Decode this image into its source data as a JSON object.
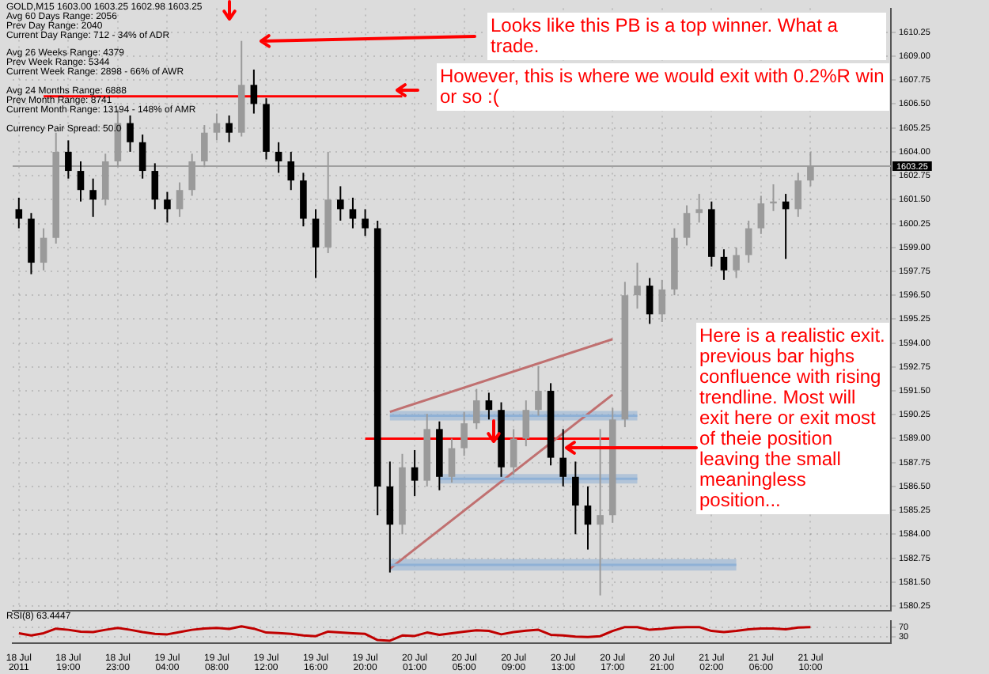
{
  "chart_data": [
    {
      "type": "candlestick",
      "grid": true,
      "categories": [
        "18 Jul 2011",
        null,
        null,
        null,
        "18 Jul 19:00",
        null,
        null,
        null,
        "18 Jul 23:00",
        null,
        null,
        null,
        "19 Jul 04:00",
        null,
        null,
        null,
        "19 Jul 08:00",
        null,
        null,
        null,
        "19 Jul 12:00",
        null,
        null,
        null,
        "19 Jul 16:00",
        null,
        null,
        null,
        "19 Jul 20:00",
        null,
        null,
        null,
        "20 Jul 01:00",
        null,
        null,
        null,
        "20 Jul 05:00",
        null,
        null,
        null,
        "20 Jul 09:00",
        null,
        null,
        null,
        "20 Jul 13:00",
        null,
        null,
        null,
        "20 Jul 17:00",
        null,
        null,
        null,
        "20 Jul 21:00",
        null,
        null,
        null,
        "21 Jul 02:00",
        null,
        null,
        null,
        "21 Jul 06:00",
        null,
        null,
        null,
        "21 Jul 10:00",
        null,
        null,
        null,
        null,
        null,
        null
      ],
      "ohlc": [
        [
          1601.0,
          1601.6,
          1600.0,
          1600.5
        ],
        [
          1600.5,
          1600.8,
          1597.6,
          1598.2
        ],
        [
          1598.2,
          1600.0,
          1597.8,
          1599.5
        ],
        [
          1599.5,
          1605.0,
          1599.2,
          1604.0
        ],
        [
          1604.0,
          1604.6,
          1602.6,
          1603.0
        ],
        [
          1603.0,
          1603.5,
          1601.4,
          1602.0
        ],
        [
          1602.0,
          1602.6,
          1600.6,
          1601.5
        ],
        [
          1601.5,
          1603.9,
          1601.2,
          1603.5
        ],
        [
          1603.5,
          1606.2,
          1603.2,
          1605.5
        ],
        [
          1605.5,
          1605.9,
          1604.0,
          1604.5
        ],
        [
          1604.5,
          1604.9,
          1602.6,
          1603.0
        ],
        [
          1603.0,
          1603.4,
          1601.0,
          1601.5
        ],
        [
          1601.5,
          1601.9,
          1600.3,
          1601.0
        ],
        [
          1601.0,
          1602.4,
          1600.6,
          1602.0
        ],
        [
          1602.0,
          1603.9,
          1601.7,
          1603.5
        ],
        [
          1603.5,
          1605.4,
          1603.2,
          1605.0
        ],
        [
          1605.0,
          1606.0,
          1604.6,
          1605.5
        ],
        [
          1605.5,
          1605.9,
          1604.5,
          1605.0
        ],
        [
          1605.0,
          1609.8,
          1604.8,
          1607.5
        ],
        [
          1607.5,
          1608.3,
          1606.0,
          1606.5
        ],
        [
          1606.5,
          1606.8,
          1603.6,
          1604.0
        ],
        [
          1604.0,
          1604.5,
          1602.9,
          1603.5
        ],
        [
          1603.5,
          1604.0,
          1602.0,
          1602.5
        ],
        [
          1602.5,
          1602.9,
          1600.1,
          1600.5
        ],
        [
          1600.5,
          1601.0,
          1597.4,
          1599.0
        ],
        [
          1599.0,
          1604.0,
          1598.7,
          1601.5
        ],
        [
          1601.5,
          1602.2,
          1600.4,
          1601.0
        ],
        [
          1601.0,
          1601.6,
          1600.0,
          1600.5
        ],
        [
          1600.5,
          1601.0,
          1599.6,
          1600.0
        ],
        [
          1600.0,
          1600.4,
          1585.0,
          1586.5
        ],
        [
          1586.5,
          1587.8,
          1582.0,
          1584.5
        ],
        [
          1584.5,
          1588.2,
          1584.0,
          1587.5
        ],
        [
          1587.5,
          1588.4,
          1586.0,
          1586.8
        ],
        [
          1586.8,
          1590.3,
          1586.5,
          1589.5
        ],
        [
          1589.5,
          1589.9,
          1586.3,
          1587.0
        ],
        [
          1587.0,
          1589.0,
          1586.7,
          1588.5
        ],
        [
          1588.5,
          1590.4,
          1588.1,
          1589.8
        ],
        [
          1589.8,
          1591.6,
          1589.5,
          1591.0
        ],
        [
          1591.0,
          1591.4,
          1590.0,
          1590.5
        ],
        [
          1590.5,
          1590.9,
          1587.0,
          1587.5
        ],
        [
          1587.5,
          1589.5,
          1587.1,
          1589.0
        ],
        [
          1589.0,
          1591.0,
          1588.6,
          1590.5
        ],
        [
          1590.5,
          1592.8,
          1590.2,
          1591.5
        ],
        [
          1591.5,
          1591.9,
          1587.6,
          1588.0
        ],
        [
          1588.0,
          1589.5,
          1586.5,
          1587.0
        ],
        [
          1587.0,
          1587.8,
          1584.0,
          1585.5
        ],
        [
          1585.5,
          1586.5,
          1583.2,
          1584.5
        ],
        [
          1584.5,
          1589.5,
          1580.8,
          1585.0
        ],
        [
          1585.0,
          1590.6,
          1584.6,
          1590.0
        ],
        [
          1590.0,
          1597.2,
          1589.6,
          1596.5
        ],
        [
          1596.5,
          1598.2,
          1595.8,
          1597.0
        ],
        [
          1597.0,
          1597.4,
          1595.0,
          1595.5
        ],
        [
          1595.5,
          1597.3,
          1595.1,
          1596.8
        ],
        [
          1596.8,
          1600.0,
          1596.5,
          1599.5
        ],
        [
          1599.5,
          1601.2,
          1599.1,
          1600.8
        ],
        [
          1600.8,
          1601.8,
          1600.3,
          1601.0
        ],
        [
          1601.0,
          1601.4,
          1598.0,
          1598.5
        ],
        [
          1598.5,
          1598.9,
          1597.3,
          1597.8
        ],
        [
          1597.8,
          1599.0,
          1597.4,
          1598.6
        ],
        [
          1598.6,
          1600.4,
          1598.2,
          1600.0
        ],
        [
          1600.0,
          1601.7,
          1599.7,
          1601.3
        ],
        [
          1601.3,
          1602.3,
          1600.9,
          1601.4
        ],
        [
          1601.4,
          1601.8,
          1598.4,
          1601.0
        ],
        [
          1601.0,
          1602.9,
          1600.6,
          1602.5
        ],
        [
          1602.5,
          1604.0,
          1602.2,
          1603.25
        ],
        null,
        null,
        null,
        null,
        null,
        null
      ],
      "series": [
        {
          "type": "line",
          "color": "#8fb1d6",
          "values": [
            null,
            null,
            null,
            null,
            null,
            null,
            null,
            null,
            null,
            null,
            null,
            null,
            null,
            null,
            null,
            null,
            null,
            null,
            null,
            null,
            null,
            null,
            null,
            null,
            null,
            null,
            null,
            null,
            null,
            null,
            1590.2,
            null,
            null,
            null,
            null,
            null,
            null,
            null,
            null,
            null,
            null,
            null,
            null,
            null,
            null,
            null,
            null,
            null,
            null,
            null,
            1590.2,
            null,
            null,
            null,
            null,
            null,
            null,
            null,
            null,
            null,
            null,
            null,
            null,
            null,
            null,
            null,
            null,
            null,
            null,
            null,
            null
          ],
          "lower": [
            null,
            null,
            null,
            null,
            null,
            null,
            null,
            null,
            null,
            null,
            null,
            null,
            null,
            null,
            null,
            null,
            null,
            null,
            null,
            null,
            null,
            null,
            null,
            null,
            null,
            null,
            null,
            null,
            null,
            null,
            1589.95,
            null,
            null,
            null,
            null,
            null,
            null,
            null,
            null,
            null,
            null,
            null,
            null,
            null,
            null,
            null,
            null,
            null,
            null,
            null,
            1589.95,
            null,
            null,
            null,
            null,
            null,
            null,
            null,
            null,
            null,
            null,
            null,
            null,
            null,
            null,
            null,
            null,
            null,
            null,
            null,
            null
          ],
          "upper": [
            null,
            null,
            null,
            null,
            null,
            null,
            null,
            null,
            null,
            null,
            null,
            null,
            null,
            null,
            null,
            null,
            null,
            null,
            null,
            null,
            null,
            null,
            null,
            null,
            null,
            null,
            null,
            null,
            null,
            null,
            1590.45,
            null,
            null,
            null,
            null,
            null,
            null,
            null,
            null,
            null,
            null,
            null,
            null,
            null,
            null,
            null,
            null,
            null,
            null,
            null,
            1590.45,
            null,
            null,
            null,
            null,
            null,
            null,
            null,
            null,
            null,
            null,
            null,
            null,
            null,
            null,
            null,
            null,
            null,
            null,
            null,
            null
          ]
        },
        {
          "type": "line",
          "color": "#8fb1d6",
          "values": [
            null,
            null,
            null,
            null,
            null,
            null,
            null,
            null,
            null,
            null,
            null,
            null,
            null,
            null,
            null,
            null,
            null,
            null,
            null,
            null,
            null,
            null,
            null,
            null,
            null,
            null,
            null,
            null,
            null,
            null,
            null,
            null,
            null,
            null,
            1586.9,
            null,
            null,
            null,
            null,
            null,
            null,
            null,
            null,
            null,
            null,
            null,
            null,
            null,
            null,
            null,
            1586.9,
            null,
            null,
            null,
            null,
            null,
            null,
            null,
            null,
            null,
            null,
            null,
            null,
            null,
            null,
            null,
            null,
            null,
            null,
            null,
            null
          ],
          "lower": [
            null,
            null,
            null,
            null,
            null,
            null,
            null,
            null,
            null,
            null,
            null,
            null,
            null,
            null,
            null,
            null,
            null,
            null,
            null,
            null,
            null,
            null,
            null,
            null,
            null,
            null,
            null,
            null,
            null,
            null,
            null,
            null,
            null,
            null,
            1586.65,
            null,
            null,
            null,
            null,
            null,
            null,
            null,
            null,
            null,
            null,
            null,
            null,
            null,
            null,
            null,
            1586.65,
            null,
            null,
            null,
            null,
            null,
            null,
            null,
            null,
            null,
            null,
            null,
            null,
            null,
            null,
            null,
            null,
            null,
            null,
            null,
            null
          ],
          "upper": [
            null,
            null,
            null,
            null,
            null,
            null,
            null,
            null,
            null,
            null,
            null,
            null,
            null,
            null,
            null,
            null,
            null,
            null,
            null,
            null,
            null,
            null,
            null,
            null,
            null,
            null,
            null,
            null,
            null,
            null,
            null,
            null,
            null,
            null,
            1587.15,
            null,
            null,
            null,
            null,
            null,
            null,
            null,
            null,
            null,
            null,
            null,
            null,
            null,
            null,
            null,
            1587.15,
            null,
            null,
            null,
            null,
            null,
            null,
            null,
            null,
            null,
            null,
            null,
            null,
            null,
            null,
            null,
            null,
            null,
            null,
            null,
            null
          ]
        },
        {
          "type": "line",
          "color": "#8fb1d6",
          "values": [
            null,
            null,
            null,
            null,
            null,
            null,
            null,
            null,
            null,
            null,
            null,
            null,
            null,
            null,
            null,
            null,
            null,
            null,
            null,
            null,
            null,
            null,
            null,
            null,
            null,
            null,
            null,
            null,
            null,
            null,
            1582.4,
            null,
            null,
            null,
            null,
            null,
            null,
            null,
            null,
            null,
            null,
            null,
            null,
            null,
            null,
            null,
            null,
            null,
            null,
            null,
            null,
            null,
            null,
            null,
            null,
            null,
            null,
            null,
            1582.4,
            null,
            null,
            null,
            null,
            null,
            null,
            null,
            null,
            null,
            null,
            null,
            null
          ],
          "lower": [
            null,
            null,
            null,
            null,
            null,
            null,
            null,
            null,
            null,
            null,
            null,
            null,
            null,
            null,
            null,
            null,
            null,
            null,
            null,
            null,
            null,
            null,
            null,
            null,
            null,
            null,
            null,
            null,
            null,
            null,
            1582.1,
            null,
            null,
            null,
            null,
            null,
            null,
            null,
            null,
            null,
            null,
            null,
            null,
            null,
            null,
            null,
            null,
            null,
            null,
            null,
            null,
            null,
            null,
            null,
            null,
            null,
            null,
            null,
            1582.1,
            null,
            null,
            null,
            null,
            null,
            null,
            null,
            null,
            null,
            null,
            null,
            null
          ],
          "upper": [
            null,
            null,
            null,
            null,
            null,
            null,
            null,
            null,
            null,
            null,
            null,
            null,
            null,
            null,
            null,
            null,
            null,
            null,
            null,
            null,
            null,
            null,
            null,
            null,
            null,
            null,
            null,
            null,
            null,
            null,
            1582.7,
            null,
            null,
            null,
            null,
            null,
            null,
            null,
            null,
            null,
            null,
            null,
            null,
            null,
            null,
            null,
            null,
            null,
            null,
            null,
            null,
            null,
            null,
            null,
            null,
            null,
            null,
            null,
            1582.7,
            null,
            null,
            null,
            null,
            null,
            null,
            null,
            null,
            null,
            null,
            null,
            null
          ]
        },
        {
          "type": "line",
          "color": "#c07070",
          "values": [
            null,
            null,
            null,
            null,
            null,
            null,
            null,
            null,
            null,
            null,
            null,
            null,
            null,
            null,
            null,
            null,
            null,
            null,
            null,
            null,
            null,
            null,
            null,
            null,
            null,
            null,
            null,
            null,
            null,
            null,
            1590.4,
            null,
            null,
            null,
            null,
            null,
            null,
            null,
            null,
            null,
            null,
            null,
            null,
            null,
            null,
            null,
            null,
            null,
            1594.2,
            null,
            null,
            null,
            null,
            null,
            null,
            null,
            null,
            null,
            null,
            null,
            null,
            null,
            null,
            null,
            null,
            null,
            null,
            null,
            null,
            null,
            null
          ]
        },
        {
          "type": "line",
          "color": "#c07070",
          "values": [
            null,
            null,
            null,
            null,
            null,
            null,
            null,
            null,
            null,
            null,
            null,
            null,
            null,
            null,
            null,
            null,
            null,
            null,
            null,
            null,
            null,
            null,
            null,
            null,
            null,
            null,
            null,
            null,
            null,
            null,
            1582.2,
            null,
            null,
            null,
            null,
            null,
            null,
            null,
            null,
            null,
            null,
            null,
            null,
            null,
            null,
            null,
            null,
            null,
            1591.3,
            null,
            null,
            null,
            null,
            null,
            null,
            null,
            null,
            null,
            null,
            null,
            null,
            null,
            null,
            null,
            null,
            null,
            null,
            null,
            null,
            null,
            null
          ]
        },
        {
          "type": "line",
          "color": "#ff0000",
          "values": [
            null,
            null,
            1606.9,
            null,
            null,
            null,
            null,
            null,
            null,
            null,
            null,
            null,
            null,
            null,
            null,
            null,
            null,
            null,
            null,
            null,
            null,
            null,
            null,
            null,
            null,
            null,
            null,
            null,
            null,
            null,
            null,
            1606.9,
            null,
            null,
            null,
            null,
            null,
            null,
            null,
            null,
            null,
            null,
            null,
            null,
            null,
            null,
            null,
            null,
            null,
            null,
            null,
            null,
            null,
            null,
            null,
            null,
            null,
            null,
            null,
            null,
            null,
            null,
            null,
            null,
            null,
            null,
            null,
            null,
            null,
            null,
            null
          ]
        },
        {
          "type": "line",
          "color": "#ff0000",
          "values": [
            null,
            null,
            null,
            null,
            null,
            null,
            null,
            null,
            null,
            null,
            null,
            null,
            null,
            null,
            null,
            null,
            null,
            null,
            null,
            null,
            null,
            null,
            null,
            null,
            null,
            null,
            null,
            null,
            1589.0,
            null,
            null,
            null,
            null,
            null,
            null,
            null,
            null,
            null,
            null,
            null,
            null,
            null,
            null,
            null,
            null,
            null,
            null,
            null,
            1589.0,
            null,
            null,
            null,
            null,
            null,
            null,
            null,
            null,
            null,
            null,
            null,
            null,
            null,
            null,
            null,
            null,
            null,
            null,
            null,
            null,
            null,
            null
          ]
        }
      ],
      "ylim": [
        1580,
        1611.5
      ],
      "yticks": [
        {
          "value": 1580.25,
          "label": "1580.25"
        },
        {
          "value": 1581.5,
          "label": "1581.50"
        },
        {
          "value": 1582.75,
          "label": "1582.75"
        },
        {
          "value": 1584,
          "label": "1584.00"
        },
        {
          "value": 1585.25,
          "label": "1585.25"
        },
        {
          "value": 1586.5,
          "label": "1586.50"
        },
        {
          "value": 1587.75,
          "label": "1587.75"
        },
        {
          "value": 1589,
          "label": "1589.00"
        },
        {
          "value": 1590.25,
          "label": "1590.25"
        },
        {
          "value": 1591.5,
          "label": "1591.50"
        },
        {
          "value": 1592.75,
          "label": "1592.75"
        },
        {
          "value": 1594,
          "label": "1594.00"
        },
        {
          "value": 1595.25,
          "label": "1595.25"
        },
        {
          "value": 1596.5,
          "label": "1596.50"
        },
        {
          "value": 1597.75,
          "label": "1597.75"
        },
        {
          "value": 1599,
          "label": "1599.00"
        },
        {
          "value": 1600.25,
          "label": "1600.25"
        },
        {
          "value": 1601.5,
          "label": "1601.50"
        },
        {
          "value": 1602.75,
          "label": "1602.75"
        },
        {
          "value": 1604,
          "label": "1604.00"
        },
        {
          "value": 1605.25,
          "label": "1605.25"
        },
        {
          "value": 1606.5,
          "label": "1606.50"
        },
        {
          "value": 1607.75,
          "label": "1607.75"
        },
        {
          "value": 1609,
          "label": "1609.00"
        },
        {
          "value": 1610.25,
          "label": "1610.25"
        }
      ],
      "ref_lines": [
        {
          "axis": "y",
          "value": 1603.25,
          "label": "1603.25",
          "color": "#a0a0a0"
        }
      ],
      "annotations": [
        "GOLD,M15  1603.00 1603.25 1602.98 1603.25",
        "Avg 60 Days Range: 2056",
        "Prev Day Range: 2040",
        "Current Day Range: 712 - 34% of ADR",
        "Avg 26 Weeks Range: 4379",
        "Prev Week Range: 5344",
        "Current Week Range: 2898 - 66% of AWR",
        "Avg 24 Months Range: 6888",
        "Prev Month Range: 8741",
        "Current Month Range: 13194 - 148% of AMR",
        "Currency Pair Spread: 50.0",
        "Looks like this PB is a top winner. What a trade.",
        "However, this is where we would exit with 0.2%R win or so :(",
        "Here is a realistic exit. previous bar highs confluence with rising trendline. Most will exit here or exit most of theie position leaving the small meaningless position..."
      ]
    },
    {
      "type": "line",
      "title": "RSI(8) 63.4447",
      "color": "#c00000",
      "grid": "y",
      "ylim": [
        0,
        100
      ],
      "yticks": [
        30,
        70
      ],
      "categories": [
        null,
        null,
        null,
        null,
        null,
        null,
        null,
        null,
        null,
        null,
        null,
        null,
        null,
        null,
        null,
        null,
        null,
        null,
        null,
        null,
        null,
        null,
        null,
        null,
        null,
        null,
        null,
        null,
        null,
        null,
        null,
        null,
        null,
        null,
        null,
        null,
        null,
        null,
        null,
        null,
        null,
        null,
        null,
        null,
        null,
        null,
        null,
        null,
        null,
        null,
        null,
        null,
        null,
        null,
        null,
        null,
        null,
        null,
        null,
        null,
        null,
        null,
        null,
        null,
        null,
        null,
        null,
        null,
        null,
        null,
        null
      ],
      "values": [
        45,
        35,
        45,
        65,
        60,
        52,
        50,
        60,
        68,
        60,
        50,
        42,
        40,
        50,
        60,
        66,
        68,
        64,
        75,
        65,
        48,
        46,
        42,
        35,
        32,
        52,
        48,
        45,
        42,
        15,
        12,
        35,
        33,
        48,
        38,
        45,
        52,
        58,
        55,
        40,
        50,
        56,
        60,
        38,
        35,
        30,
        28,
        32,
        55,
        72,
        72,
        60,
        64,
        70,
        72,
        72,
        55,
        50,
        55,
        62,
        66,
        66,
        62,
        70,
        72,
        null,
        null,
        null,
        null,
        null,
        null
      ]
    }
  ]
}
